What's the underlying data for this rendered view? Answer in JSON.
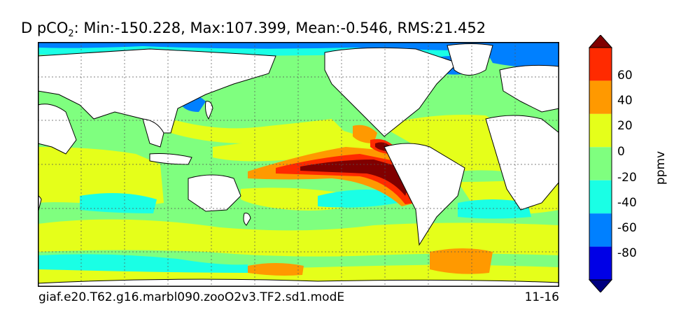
{
  "title": {
    "variable": "D pCO",
    "subscript": "2",
    "stats": ": Min:-150.228, Max:107.399, Mean:-0.546, RMS:21.452"
  },
  "footer": {
    "case_name": "giaf.e20.T62.g16.marbl090.zooO2v3.TF2.sd1.modE",
    "years": "11-16"
  },
  "colorbar": {
    "label": "ppmv",
    "ticks": [
      "60",
      "40",
      "20",
      "0",
      "-20",
      "-40",
      "-60",
      "-80"
    ],
    "colors": [
      "#000080",
      "#0000e6",
      "#0080ff",
      "#1affe5",
      "#7fff7f",
      "#e5ff1a",
      "#ff9900",
      "#ff2a00",
      "#800000"
    ],
    "extend": "both"
  },
  "map": {
    "projection": "equirectangular",
    "gridlines": true,
    "land_color": "#ffffff",
    "ocean_background": "#7fff7f"
  }
}
